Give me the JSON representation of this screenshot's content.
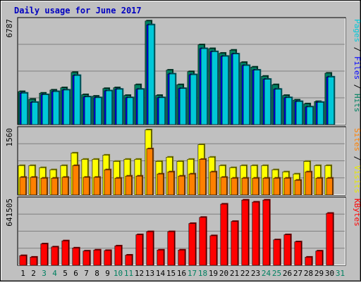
{
  "chart_data": {
    "type": "bar",
    "title": "Daily usage for June 2017",
    "days": [
      "1",
      "2",
      "3",
      "4",
      "5",
      "6",
      "7",
      "8",
      "9",
      "10",
      "11",
      "12",
      "13",
      "14",
      "15",
      "16",
      "17",
      "18",
      "19",
      "20",
      "21",
      "22",
      "23",
      "24",
      "25",
      "26",
      "27",
      "28",
      "29",
      "30",
      "31"
    ],
    "weekend_days": [
      "3",
      "4",
      "10",
      "11",
      "17",
      "18",
      "24",
      "25",
      "31"
    ],
    "panels": [
      {
        "id": "hits-files-pages",
        "max_label": "6787",
        "ymax": 6787,
        "side_label": [
          {
            "text": "Pages",
            "color": "#00c8d8"
          },
          {
            "text": " / ",
            "color": "#000000"
          },
          {
            "text": "Files",
            "color": "#0000ff"
          },
          {
            "text": " / ",
            "color": "#000000"
          },
          {
            "text": "Hits",
            "color": "#008060"
          }
        ],
        "series": [
          {
            "name": "Hits",
            "color": "#008060",
            "values": [
              2150,
              1650,
              2050,
              2250,
              2400,
              3400,
              1950,
              1850,
              2350,
              2400,
              1900,
              2600,
              6750,
              1900,
              3550,
              2600,
              3450,
              5200,
              4950,
              4650,
              4850,
              4050,
              3750,
              3150,
              2600,
              1900,
              1600,
              1350,
              1500,
              3350,
              0
            ]
          },
          {
            "name": "Files",
            "color": "#0000ff",
            "values": [
              2050,
              1450,
              1950,
              2150,
              2250,
              3200,
              1800,
              1750,
              2200,
              2300,
              1750,
              2300,
              6500,
              1750,
              3300,
              2350,
              3250,
              4950,
              4750,
              4450,
              4600,
              3850,
              3550,
              2950,
              2300,
              1750,
              1500,
              1150,
              1450,
              3100,
              0
            ]
          },
          {
            "name": "Pages",
            "color": "#00c8d8",
            "values": [
              2050,
              1450,
              1950,
              2150,
              2250,
              3200,
              1800,
              1750,
              2200,
              2300,
              1750,
              2300,
              6500,
              1750,
              3300,
              2350,
              3250,
              4950,
              4750,
              4450,
              4600,
              3850,
              3550,
              2950,
              2300,
              1750,
              1500,
              1150,
              1450,
              3100,
              0
            ]
          }
        ]
      },
      {
        "id": "visits-sites",
        "max_label": "1560",
        "ymax": 1560,
        "side_label": [
          {
            "text": "Sites",
            "color": "#ff8000"
          },
          {
            "text": " / ",
            "color": "#000000"
          },
          {
            "text": "Visits",
            "color": "#e8e800"
          }
        ],
        "series": [
          {
            "name": "Visits",
            "color": "#ffff00",
            "values": [
              700,
              700,
              650,
              600,
              700,
              1000,
              850,
              850,
              950,
              800,
              850,
              850,
              1550,
              800,
              900,
              800,
              850,
              1200,
              900,
              700,
              650,
              700,
              700,
              700,
              600,
              550,
              500,
              800,
              700,
              700,
              0
            ]
          },
          {
            "name": "Sites",
            "color": "#ff8000",
            "values": [
              420,
              420,
              400,
              400,
              420,
              700,
              420,
              420,
              600,
              400,
              450,
              450,
              1100,
              500,
              550,
              450,
              500,
              850,
              550,
              420,
              400,
              400,
              400,
              400,
              400,
              400,
              350,
              550,
              400,
              400,
              0
            ]
          }
        ]
      },
      {
        "id": "kbytes",
        "max_label": "641505",
        "ymax": 641505,
        "side_label": [
          {
            "text": "KBytes",
            "color": "#ff0000"
          }
        ],
        "series": [
          {
            "name": "KBytes",
            "color": "#ff0000",
            "values": [
              95000,
              80000,
              210000,
              180000,
              240000,
              170000,
              140000,
              150000,
              145000,
              190000,
              100000,
              300000,
              330000,
              150000,
              330000,
              150000,
              410000,
              470000,
              290000,
              600000,
              430000,
              640000,
              620000,
              640000,
              250000,
              300000,
              230000,
              80000,
              140000,
              510000,
              0
            ]
          }
        ]
      }
    ]
  }
}
